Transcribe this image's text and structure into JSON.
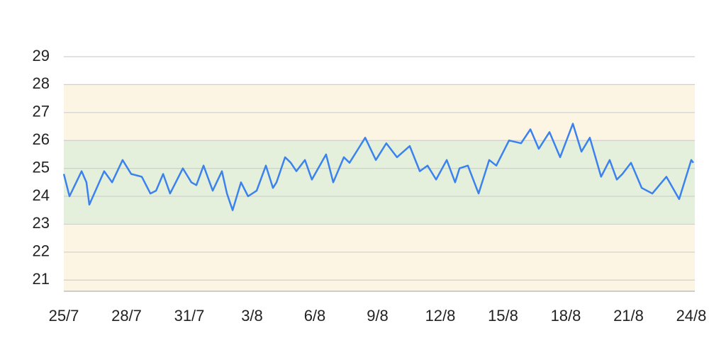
{
  "chart_data": {
    "type": "line",
    "x": [
      0,
      0.27,
      0.85,
      1.08,
      1.22,
      1.93,
      2.31,
      2.81,
      3.22,
      3.73,
      4.14,
      4.41,
      4.75,
      5.08,
      5.69,
      6.1,
      6.34,
      6.68,
      7.12,
      7.56,
      7.8,
      8.07,
      8.47,
      8.81,
      9.22,
      9.66,
      10.0,
      10.17,
      10.58,
      10.85,
      11.12,
      11.53,
      11.86,
      12.54,
      12.88,
      13.39,
      13.66,
      14.41,
      14.92,
      15.42,
      15.93,
      16.54,
      17.02,
      17.39,
      17.8,
      18.31,
      18.71,
      18.92,
      19.32,
      19.83,
      20.34,
      20.68,
      21.29,
      21.86,
      22.31,
      22.71,
      23.22,
      23.73,
      24.34,
      24.75,
      25.15,
      25.69,
      26.1,
      26.44,
      26.71,
      27.12,
      27.63,
      28.14,
      28.81,
      29.42,
      30.0,
      30.1
    ],
    "series": [
      {
        "color": "#3b82ef",
        "values": [
          24.8,
          24.0,
          24.9,
          24.5,
          23.7,
          24.9,
          24.5,
          25.3,
          24.8,
          24.7,
          24.1,
          24.2,
          24.8,
          24.1,
          25.0,
          24.5,
          24.4,
          25.1,
          24.2,
          24.9,
          24.1,
          23.5,
          24.5,
          24.0,
          24.2,
          25.1,
          24.3,
          24.5,
          25.4,
          25.2,
          24.9,
          25.3,
          24.6,
          25.5,
          24.5,
          25.4,
          25.2,
          26.1,
          25.3,
          25.9,
          25.4,
          25.8,
          24.9,
          25.1,
          24.6,
          25.3,
          24.5,
          25.0,
          25.1,
          24.1,
          25.3,
          25.1,
          26.0,
          25.9,
          26.4,
          25.7,
          26.3,
          25.4,
          26.6,
          25.6,
          26.1,
          24.7,
          25.3,
          24.6,
          24.8,
          25.2,
          24.3,
          24.1,
          24.7,
          23.9,
          25.3,
          25.2
        ]
      }
    ],
    "xlim": [
      0,
      30.17
    ],
    "xticks": [
      {
        "value": 0,
        "label": "25/7"
      },
      {
        "value": 3,
        "label": "28/7"
      },
      {
        "value": 6,
        "label": "31/7"
      },
      {
        "value": 9,
        "label": "3/8"
      },
      {
        "value": 12,
        "label": "6/8"
      },
      {
        "value": 15,
        "label": "9/8"
      },
      {
        "value": 18,
        "label": "12/8"
      },
      {
        "value": 21,
        "label": "15/8"
      },
      {
        "value": 24,
        "label": "18/8"
      },
      {
        "value": 27,
        "label": "21/8"
      },
      {
        "value": 30,
        "label": "24/8"
      }
    ],
    "ylim": [
      20.6,
      29
    ],
    "yticks": [
      21,
      22,
      23,
      24,
      25,
      26,
      27,
      28,
      29
    ],
    "grid": true,
    "bands": [
      {
        "from": 20.6,
        "to": 28,
        "color": "#fdf5e3"
      },
      {
        "from": 23,
        "to": 26,
        "color": "#e4f0db"
      }
    ]
  }
}
